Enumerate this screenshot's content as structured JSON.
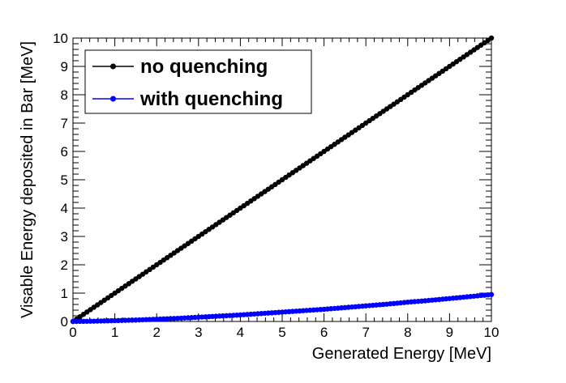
{
  "chart_data": {
    "type": "line",
    "xlabel": "Generated Energy [MeV]",
    "ylabel": "Visable Energy deposited in Bar [MeV]",
    "xlim": [
      0,
      10
    ],
    "ylim": [
      0,
      10
    ],
    "xticks": [
      "0",
      "1",
      "2",
      "3",
      "4",
      "5",
      "6",
      "7",
      "8",
      "9",
      "10"
    ],
    "yticks": [
      "0",
      "1",
      "2",
      "3",
      "4",
      "5",
      "6",
      "7",
      "8",
      "9",
      "10"
    ],
    "grid": false,
    "legend_position": "top-left",
    "series": [
      {
        "name": "no quenching",
        "color": "#000000",
        "x": [
          0,
          0.5,
          1,
          1.5,
          2,
          2.5,
          3,
          3.5,
          4,
          4.5,
          5,
          5.5,
          6,
          6.5,
          7,
          7.5,
          8,
          8.5,
          9,
          9.5,
          10
        ],
        "y": [
          0,
          0.5,
          1,
          1.5,
          2,
          2.5,
          3,
          3.5,
          4,
          4.5,
          5,
          5.5,
          6,
          6.5,
          7,
          7.5,
          8,
          8.5,
          9,
          9.5,
          10
        ]
      },
      {
        "name": "with quenching",
        "color": "#0000ff",
        "x": [
          0,
          0.5,
          1,
          1.5,
          2,
          2.5,
          3,
          3.5,
          4,
          4.5,
          5,
          5.5,
          6,
          6.5,
          7,
          7.5,
          8,
          8.5,
          9,
          9.5,
          10
        ],
        "y": [
          0,
          0.01,
          0.03,
          0.05,
          0.08,
          0.11,
          0.15,
          0.19,
          0.23,
          0.28,
          0.33,
          0.38,
          0.43,
          0.49,
          0.55,
          0.61,
          0.68,
          0.74,
          0.81,
          0.88,
          0.95
        ]
      }
    ]
  }
}
